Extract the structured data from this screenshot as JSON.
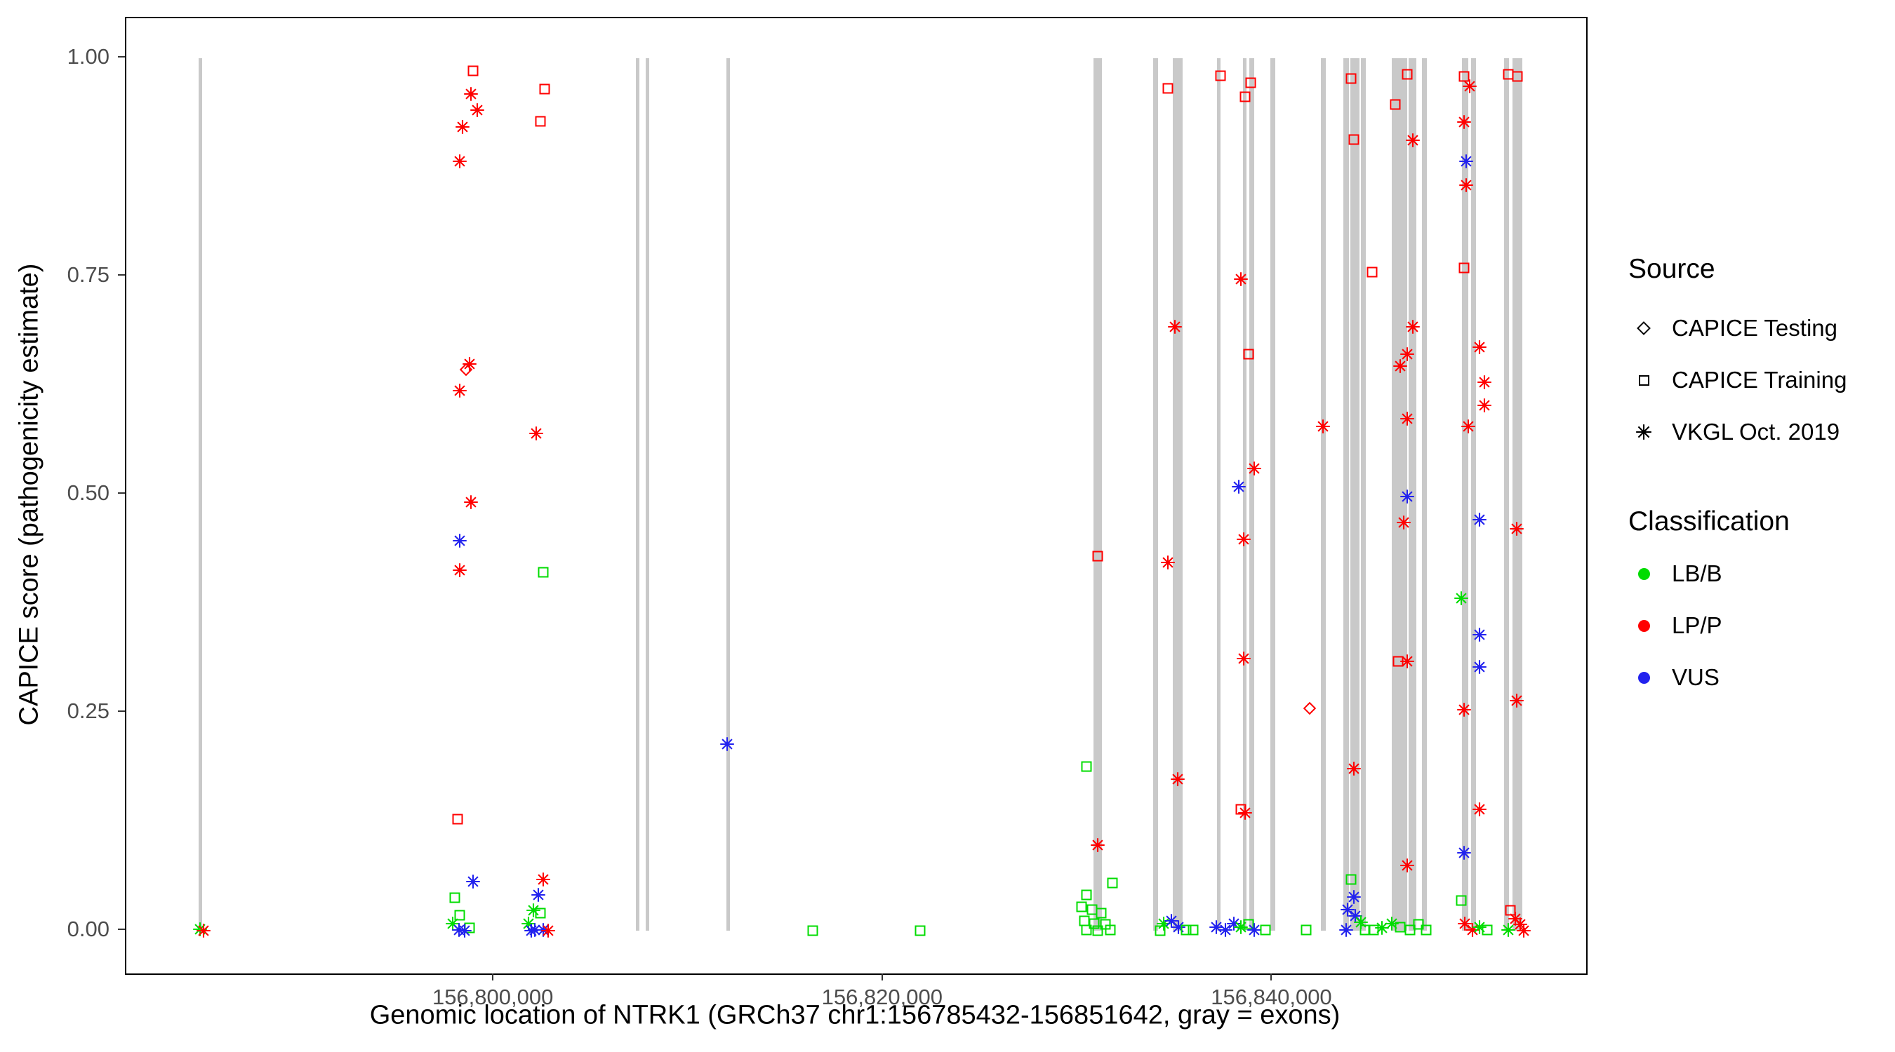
{
  "legend": {
    "source": {
      "title": "Source",
      "items": [
        {
          "label": "CAPICE Testing",
          "shape": "diamond"
        },
        {
          "label": "CAPICE Training",
          "shape": "square"
        },
        {
          "label": "VKGL Oct. 2019",
          "shape": "asterisk"
        }
      ]
    },
    "classification": {
      "title": "Classification",
      "items": [
        {
          "label": "LB/B",
          "color": "#00DC00"
        },
        {
          "label": "LP/P",
          "color": "#FF0000"
        },
        {
          "label": "VUS",
          "color": "#2222EE"
        }
      ]
    }
  },
  "chart_data": {
    "type": "scatter",
    "title": "",
    "xlabel": "Genomic location of NTRK1 (GRCh37 chr1:156785432-156851642, gray = exons)",
    "ylabel": "CAPICE score (pathogenicity estimate)",
    "x_domain": [
      156781100,
      156856100
    ],
    "y_domain": [
      -0.049,
      1.046
    ],
    "x_ticks": [
      {
        "value": 156800000,
        "label": "156,800,000"
      },
      {
        "value": 156820000,
        "label": "156,820,000"
      },
      {
        "value": 156840000,
        "label": "156,840,000"
      }
    ],
    "y_ticks": [
      {
        "value": 0.0,
        "label": "0.00"
      },
      {
        "value": 0.25,
        "label": "0.25"
      },
      {
        "value": 0.5,
        "label": "0.50"
      },
      {
        "value": 0.75,
        "label": "0.75"
      },
      {
        "value": 1.0,
        "label": "1.00"
      }
    ],
    "exon_color": "#C9C9C9",
    "colors": {
      "g": "#00DC00",
      "r": "#FF0000",
      "b": "#2222EE"
    },
    "class_codes": {
      "g": "LB/B",
      "r": "LP/P",
      "b": "VUS"
    },
    "shape_codes": {
      "s": "square = CAPICE Training",
      "a": "asterisk = VKGL Oct. 2019",
      "d": "diamond = CAPICE Testing"
    },
    "exons": [
      [
        156784810,
        156785000
      ],
      [
        156807260,
        156807450
      ],
      [
        156807770,
        156807960
      ],
      [
        156811920,
        156812110
      ],
      [
        156830790,
        156831230
      ],
      [
        156833840,
        156834090
      ],
      [
        156834850,
        156835350
      ],
      [
        156837140,
        156837330
      ],
      [
        156838460,
        156838650
      ],
      [
        156838810,
        156839060
      ],
      [
        156839880,
        156840130
      ],
      [
        156842460,
        156842710
      ],
      [
        156843620,
        156843930
      ],
      [
        156844000,
        156844440
      ],
      [
        156844530,
        156844780
      ],
      [
        156846100,
        156846360
      ],
      [
        156846320,
        156846890
      ],
      [
        156846990,
        156847360
      ],
      [
        156847680,
        156847930
      ],
      [
        156849720,
        156850040
      ],
      [
        156850190,
        156850450
      ],
      [
        156851890,
        156852140
      ],
      [
        156852330,
        156852830
      ]
    ],
    "points": [
      [
        156784900,
        0.002,
        "a",
        "g"
      ],
      [
        156785060,
        0.0,
        "a",
        "r"
      ],
      [
        156798930,
        0.986,
        "s",
        "r"
      ],
      [
        156798800,
        0.959,
        "a",
        "r"
      ],
      [
        156799120,
        0.941,
        "a",
        "r"
      ],
      [
        156798360,
        0.921,
        "a",
        "r"
      ],
      [
        156798240,
        0.882,
        "a",
        "r"
      ],
      [
        156802580,
        0.965,
        "s",
        "r"
      ],
      [
        156802390,
        0.928,
        "s",
        "r"
      ],
      [
        156798740,
        0.65,
        "a",
        "r"
      ],
      [
        156798560,
        0.643,
        "d",
        "r"
      ],
      [
        156798240,
        0.619,
        "a",
        "r"
      ],
      [
        156798800,
        0.491,
        "a",
        "r"
      ],
      [
        156798240,
        0.447,
        "a",
        "b"
      ],
      [
        156798240,
        0.413,
        "a",
        "r"
      ],
      [
        156802140,
        0.57,
        "a",
        "r"
      ],
      [
        156802520,
        0.411,
        "s",
        "g"
      ],
      [
        156798110,
        0.128,
        "s",
        "r"
      ],
      [
        156798930,
        0.056,
        "a",
        "b"
      ],
      [
        156797990,
        0.038,
        "s",
        "g"
      ],
      [
        156798240,
        0.018,
        "s",
        "g"
      ],
      [
        156797860,
        0.008,
        "a",
        "g"
      ],
      [
        156798180,
        0.001,
        "a",
        "b"
      ],
      [
        156798740,
        0.003,
        "s",
        "g"
      ],
      [
        156798490,
        0.0,
        "a",
        "b"
      ],
      [
        156802520,
        0.059,
        "a",
        "r"
      ],
      [
        156802260,
        0.041,
        "a",
        "b"
      ],
      [
        156802010,
        0.023,
        "a",
        "g"
      ],
      [
        156802390,
        0.02,
        "s",
        "g"
      ],
      [
        156801760,
        0.008,
        "a",
        "g"
      ],
      [
        156802080,
        0.001,
        "a",
        "b"
      ],
      [
        156802520,
        0.001,
        "a",
        "b"
      ],
      [
        156802770,
        0.0,
        "a",
        "r"
      ],
      [
        156801890,
        0.0,
        "a",
        "b"
      ],
      [
        156811950,
        0.214,
        "a",
        "b"
      ],
      [
        156816350,
        0.0,
        "s",
        "g"
      ],
      [
        156821890,
        0.0,
        "s",
        "g"
      ],
      [
        156831010,
        0.429,
        "s",
        "r"
      ],
      [
        156830440,
        0.188,
        "s",
        "g"
      ],
      [
        156831010,
        0.098,
        "a",
        "r"
      ],
      [
        156831770,
        0.055,
        "s",
        "g"
      ],
      [
        156830440,
        0.041,
        "s",
        "g"
      ],
      [
        156830190,
        0.027,
        "s",
        "g"
      ],
      [
        156830700,
        0.024,
        "s",
        "g"
      ],
      [
        156831200,
        0.02,
        "s",
        "g"
      ],
      [
        156830320,
        0.011,
        "s",
        "g"
      ],
      [
        156830820,
        0.008,
        "s",
        "g"
      ],
      [
        156831390,
        0.007,
        "s",
        "g"
      ],
      [
        156830440,
        0.001,
        "s",
        "g"
      ],
      [
        156831010,
        0.0,
        "s",
        "g"
      ],
      [
        156831640,
        0.001,
        "s",
        "g"
      ],
      [
        156834600,
        0.966,
        "s",
        "r"
      ],
      [
        156834970,
        0.692,
        "a",
        "r"
      ],
      [
        156834600,
        0.422,
        "a",
        "r"
      ],
      [
        156835100,
        0.174,
        "a",
        "r"
      ],
      [
        156834410,
        0.008,
        "a",
        "g"
      ],
      [
        156834790,
        0.011,
        "a",
        "b"
      ],
      [
        156835160,
        0.004,
        "a",
        "b"
      ],
      [
        156834220,
        0.0,
        "s",
        "g"
      ],
      [
        156835540,
        0.001,
        "s",
        "g"
      ],
      [
        156835920,
        0.001,
        "s",
        "g"
      ],
      [
        156837300,
        0.98,
        "s",
        "r"
      ],
      [
        156838870,
        0.972,
        "s",
        "r"
      ],
      [
        156838560,
        0.956,
        "s",
        "r"
      ],
      [
        156838370,
        0.747,
        "a",
        "r"
      ],
      [
        156838750,
        0.661,
        "s",
        "r"
      ],
      [
        156839060,
        0.53,
        "a",
        "r"
      ],
      [
        156838240,
        0.509,
        "a",
        "b"
      ],
      [
        156838490,
        0.449,
        "a",
        "r"
      ],
      [
        156838490,
        0.312,
        "a",
        "r"
      ],
      [
        156838370,
        0.139,
        "s",
        "r"
      ],
      [
        156838560,
        0.135,
        "a",
        "r"
      ],
      [
        156837110,
        0.004,
        "a",
        "b"
      ],
      [
        156837550,
        0.001,
        "a",
        "b"
      ],
      [
        156837990,
        0.008,
        "a",
        "b"
      ],
      [
        156838370,
        0.004,
        "a",
        "g"
      ],
      [
        156838750,
        0.007,
        "s",
        "g"
      ],
      [
        156839060,
        0.001,
        "a",
        "b"
      ],
      [
        156839630,
        0.001,
        "s",
        "g"
      ],
      [
        156841700,
        0.001,
        "s",
        "g"
      ],
      [
        156841890,
        0.255,
        "d",
        "r"
      ],
      [
        156842580,
        0.578,
        "a",
        "r"
      ],
      [
        156844030,
        0.977,
        "s",
        "r"
      ],
      [
        156844160,
        0.907,
        "s",
        "r"
      ],
      [
        156845100,
        0.755,
        "s",
        "r"
      ],
      [
        156844160,
        0.186,
        "a",
        "r"
      ],
      [
        156844030,
        0.059,
        "s",
        "g"
      ],
      [
        156844160,
        0.039,
        "a",
        "b"
      ],
      [
        156843840,
        0.024,
        "a",
        "b"
      ],
      [
        156844220,
        0.017,
        "a",
        "b"
      ],
      [
        156844540,
        0.01,
        "a",
        "g"
      ],
      [
        156843780,
        0.001,
        "a",
        "b"
      ],
      [
        156844730,
        0.001,
        "s",
        "g"
      ],
      [
        156845160,
        0.001,
        "s",
        "g"
      ],
      [
        156845600,
        0.003,
        "a",
        "g"
      ],
      [
        156846920,
        0.982,
        "s",
        "r"
      ],
      [
        156846290,
        0.947,
        "s",
        "r"
      ],
      [
        156847180,
        0.906,
        "a",
        "r"
      ],
      [
        156847180,
        0.692,
        "a",
        "r"
      ],
      [
        156846920,
        0.661,
        "a",
        "r"
      ],
      [
        156846540,
        0.647,
        "a",
        "r"
      ],
      [
        156846920,
        0.587,
        "a",
        "r"
      ],
      [
        156846920,
        0.498,
        "a",
        "b"
      ],
      [
        156846730,
        0.468,
        "a",
        "r"
      ],
      [
        156846420,
        0.309,
        "s",
        "r"
      ],
      [
        156846920,
        0.309,
        "a",
        "r"
      ],
      [
        156846920,
        0.075,
        "a",
        "r"
      ],
      [
        156846100,
        0.008,
        "a",
        "g"
      ],
      [
        156846540,
        0.004,
        "s",
        "g"
      ],
      [
        156847050,
        0.001,
        "s",
        "g"
      ],
      [
        156847490,
        0.007,
        "s",
        "g"
      ],
      [
        156847870,
        0.001,
        "s",
        "g"
      ],
      [
        156849810,
        0.979,
        "s",
        "r"
      ],
      [
        156850130,
        0.968,
        "a",
        "r"
      ],
      [
        156849810,
        0.927,
        "a",
        "r"
      ],
      [
        156849940,
        0.882,
        "a",
        "b"
      ],
      [
        156849940,
        0.855,
        "a",
        "r"
      ],
      [
        156849810,
        0.76,
        "s",
        "r"
      ],
      [
        156850630,
        0.669,
        "a",
        "r"
      ],
      [
        156850880,
        0.629,
        "a",
        "r"
      ],
      [
        156850880,
        0.602,
        "a",
        "r"
      ],
      [
        156850060,
        0.578,
        "a",
        "r"
      ],
      [
        156850630,
        0.471,
        "a",
        "b"
      ],
      [
        156849690,
        0.381,
        "a",
        "g"
      ],
      [
        156850630,
        0.339,
        "a",
        "b"
      ],
      [
        156850630,
        0.302,
        "a",
        "b"
      ],
      [
        156849810,
        0.253,
        "a",
        "r"
      ],
      [
        156850630,
        0.139,
        "a",
        "r"
      ],
      [
        156849810,
        0.089,
        "a",
        "b"
      ],
      [
        156849690,
        0.035,
        "s",
        "g"
      ],
      [
        156849880,
        0.008,
        "a",
        "r"
      ],
      [
        156850250,
        0.001,
        "a",
        "r"
      ],
      [
        156850630,
        0.004,
        "a",
        "g"
      ],
      [
        156851010,
        0.001,
        "s",
        "g"
      ],
      [
        156852080,
        0.982,
        "s",
        "r"
      ],
      [
        156852580,
        0.979,
        "s",
        "r"
      ],
      [
        156852520,
        0.461,
        "a",
        "r"
      ],
      [
        156852520,
        0.264,
        "a",
        "r"
      ],
      [
        156852200,
        0.023,
        "s",
        "r"
      ],
      [
        156852460,
        0.014,
        "a",
        "r"
      ],
      [
        156852710,
        0.007,
        "a",
        "r"
      ],
      [
        156852080,
        0.001,
        "a",
        "g"
      ],
      [
        156852900,
        0.0,
        "a",
        "r"
      ]
    ]
  }
}
